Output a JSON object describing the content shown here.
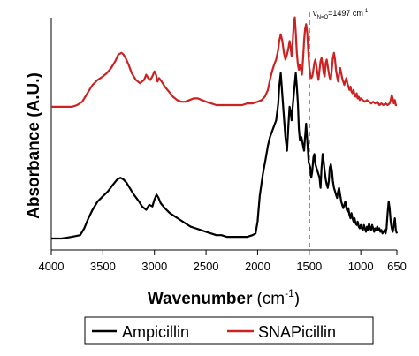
{
  "chart_data": {
    "type": "line",
    "xlabel": "Wavenumber",
    "xlabel_unit": "(cm",
    "xlabel_unit_sup": "-1",
    "xlabel_unit_close": ")",
    "ylabel": "Absorbance (A.U.)",
    "xlim": [
      4000,
      650
    ],
    "x_reversed": true,
    "y_ticks_shown": false,
    "xticks": [
      {
        "value": 4000,
        "label": "4000"
      },
      {
        "value": 3500,
        "label": "3500"
      },
      {
        "value": 3000,
        "label": "3000"
      },
      {
        "value": 2500,
        "label": "2500"
      },
      {
        "value": 2000,
        "label": "2000"
      },
      {
        "value": 1500,
        "label": "1500"
      },
      {
        "value": 1000,
        "label": "1000"
      },
      {
        "value": 650,
        "label": "650"
      }
    ],
    "annotation": {
      "x": 1497,
      "symbol": "ν",
      "subscript": "N=O",
      "text": "=1497 cm",
      "superscript": "-1"
    },
    "ylim": [
      0,
      1.35
    ],
    "series": [
      {
        "name": "Ampicillin",
        "color": "#000000",
        "x": [
          4000,
          3900,
          3800,
          3720,
          3680,
          3640,
          3600,
          3550,
          3500,
          3450,
          3400,
          3360,
          3330,
          3300,
          3270,
          3240,
          3200,
          3150,
          3120,
          3080,
          3050,
          3020,
          3000,
          2980,
          2960,
          2940,
          2900,
          2850,
          2800,
          2750,
          2700,
          2650,
          2600,
          2550,
          2500,
          2450,
          2400,
          2350,
          2300,
          2250,
          2200,
          2150,
          2100,
          2050,
          2020,
          2000,
          1980,
          1950,
          1920,
          1900,
          1880,
          1850,
          1820,
          1800,
          1790,
          1776,
          1760,
          1745,
          1730,
          1715,
          1700,
          1690,
          1680,
          1670,
          1660,
          1650,
          1640,
          1630,
          1620,
          1610,
          1600,
          1590,
          1575,
          1560,
          1550,
          1540,
          1530,
          1515,
          1505,
          1490,
          1480,
          1470,
          1460,
          1450,
          1440,
          1420,
          1400,
          1390,
          1380,
          1370,
          1360,
          1350,
          1340,
          1330,
          1320,
          1310,
          1300,
          1290,
          1280,
          1270,
          1260,
          1250,
          1240,
          1230,
          1220,
          1210,
          1200,
          1190,
          1180,
          1170,
          1160,
          1150,
          1140,
          1130,
          1120,
          1110,
          1100,
          1090,
          1080,
          1070,
          1060,
          1050,
          1040,
          1030,
          1020,
          1010,
          1000,
          990,
          980,
          970,
          960,
          950,
          940,
          930,
          920,
          910,
          900,
          890,
          880,
          870,
          860,
          850,
          840,
          830,
          820,
          810,
          800,
          790,
          780,
          770,
          760,
          750,
          740,
          730,
          720,
          710,
          700,
          690,
          680,
          670,
          660,
          650
        ],
        "y": [
          0.0,
          0.0,
          0.01,
          0.02,
          0.06,
          0.12,
          0.17,
          0.22,
          0.25,
          0.28,
          0.32,
          0.35,
          0.36,
          0.35,
          0.33,
          0.3,
          0.26,
          0.22,
          0.19,
          0.17,
          0.2,
          0.19,
          0.23,
          0.26,
          0.24,
          0.21,
          0.18,
          0.15,
          0.13,
          0.11,
          0.09,
          0.07,
          0.06,
          0.05,
          0.04,
          0.03,
          0.02,
          0.02,
          0.01,
          0.01,
          0.01,
          0.01,
          0.01,
          0.02,
          0.03,
          0.1,
          0.25,
          0.38,
          0.48,
          0.55,
          0.6,
          0.65,
          0.7,
          0.8,
          0.9,
          0.98,
          0.85,
          0.72,
          0.6,
          0.52,
          0.68,
          0.78,
          0.75,
          0.7,
          0.78,
          0.85,
          0.92,
          0.98,
          0.9,
          0.8,
          0.65,
          0.58,
          0.6,
          0.55,
          0.52,
          0.6,
          0.68,
          0.55,
          0.45,
          0.42,
          0.36,
          0.4,
          0.48,
          0.5,
          0.44,
          0.4,
          0.36,
          0.3,
          0.42,
          0.5,
          0.46,
          0.4,
          0.35,
          0.32,
          0.3,
          0.34,
          0.42,
          0.44,
          0.4,
          0.34,
          0.3,
          0.28,
          0.26,
          0.24,
          0.28,
          0.3,
          0.26,
          0.22,
          0.2,
          0.18,
          0.2,
          0.22,
          0.18,
          0.16,
          0.18,
          0.14,
          0.12,
          0.15,
          0.12,
          0.1,
          0.12,
          0.09,
          0.08,
          0.1,
          0.07,
          0.06,
          0.08,
          0.06,
          0.05,
          0.08,
          0.06,
          0.04,
          0.07,
          0.05,
          0.09,
          0.06,
          0.05,
          0.08,
          0.06,
          0.04,
          0.06,
          0.05,
          0.07,
          0.05,
          0.06,
          0.04,
          0.05,
          0.03,
          0.04,
          0.05,
          0.03,
          0.06,
          0.15,
          0.22,
          0.18,
          0.1,
          0.06,
          0.04,
          0.08,
          0.12,
          0.05,
          0.03
        ]
      },
      {
        "name": "SNAPicillin",
        "color": "#cc2222",
        "x": [
          4000,
          3900,
          3800,
          3750,
          3700,
          3670,
          3640,
          3600,
          3550,
          3500,
          3460,
          3420,
          3380,
          3350,
          3320,
          3300,
          3280,
          3250,
          3220,
          3180,
          3140,
          3100,
          3080,
          3060,
          3040,
          3020,
          3000,
          2985,
          2970,
          2955,
          2930,
          2900,
          2860,
          2820,
          2780,
          2740,
          2700,
          2660,
          2620,
          2580,
          2540,
          2500,
          2450,
          2400,
          2350,
          2300,
          2250,
          2200,
          2150,
          2100,
          2050,
          2000,
          1960,
          1930,
          1900,
          1880,
          1860,
          1840,
          1820,
          1800,
          1790,
          1776,
          1760,
          1745,
          1730,
          1715,
          1700,
          1690,
          1680,
          1670,
          1660,
          1650,
          1640,
          1630,
          1620,
          1610,
          1600,
          1590,
          1580,
          1570,
          1560,
          1550,
          1540,
          1530,
          1520,
          1510,
          1500,
          1490,
          1480,
          1470,
          1460,
          1450,
          1440,
          1430,
          1420,
          1410,
          1400,
          1390,
          1380,
          1370,
          1360,
          1350,
          1340,
          1330,
          1320,
          1310,
          1300,
          1290,
          1280,
          1270,
          1260,
          1250,
          1240,
          1230,
          1220,
          1210,
          1200,
          1190,
          1180,
          1170,
          1160,
          1150,
          1140,
          1130,
          1120,
          1110,
          1100,
          1090,
          1080,
          1070,
          1060,
          1050,
          1040,
          1030,
          1020,
          1010,
          1000,
          980,
          960,
          940,
          920,
          900,
          880,
          860,
          840,
          820,
          800,
          780,
          760,
          740,
          720,
          710,
          700,
          690,
          680,
          670,
          660,
          650
        ],
        "y": [
          0.78,
          0.78,
          0.78,
          0.79,
          0.81,
          0.84,
          0.87,
          0.91,
          0.94,
          0.96,
          0.98,
          1.01,
          1.05,
          1.09,
          1.1,
          1.09,
          1.07,
          1.03,
          0.98,
          0.94,
          0.92,
          0.94,
          0.97,
          0.95,
          0.94,
          0.96,
          0.99,
          0.97,
          0.93,
          0.95,
          0.93,
          0.9,
          0.87,
          0.84,
          0.82,
          0.81,
          0.81,
          0.82,
          0.83,
          0.83,
          0.82,
          0.81,
          0.8,
          0.79,
          0.79,
          0.79,
          0.79,
          0.79,
          0.79,
          0.8,
          0.8,
          0.81,
          0.82,
          0.84,
          0.88,
          0.94,
          0.99,
          1.03,
          1.06,
          1.12,
          1.17,
          1.21,
          1.17,
          1.1,
          1.06,
          1.09,
          1.13,
          1.17,
          1.13,
          1.08,
          1.16,
          1.27,
          1.31,
          1.22,
          1.1,
          1.03,
          1.0,
          1.03,
          1.0,
          0.97,
          1.06,
          1.17,
          1.24,
          1.27,
          1.22,
          1.12,
          1.02,
          0.97,
          0.95,
          0.96,
          1.0,
          1.04,
          1.06,
          1.02,
          0.98,
          0.94,
          1.0,
          1.05,
          1.07,
          1.03,
          0.98,
          0.96,
          1.04,
          1.06,
          1.02,
          0.98,
          0.95,
          0.94,
          1.01,
          1.07,
          1.1,
          1.06,
          1.0,
          0.96,
          0.93,
          0.97,
          1.01,
          0.98,
          0.95,
          0.93,
          0.91,
          0.93,
          0.95,
          0.92,
          0.9,
          0.88,
          0.9,
          0.87,
          0.86,
          0.88,
          0.85,
          0.84,
          0.86,
          0.83,
          0.84,
          0.82,
          0.83,
          0.82,
          0.81,
          0.82,
          0.81,
          0.8,
          0.81,
          0.8,
          0.81,
          0.79,
          0.8,
          0.79,
          0.8,
          0.79,
          0.8,
          0.82,
          0.85,
          0.83,
          0.8,
          0.82,
          0.79,
          0.79
        ]
      }
    ],
    "legend_position": "bottom"
  }
}
